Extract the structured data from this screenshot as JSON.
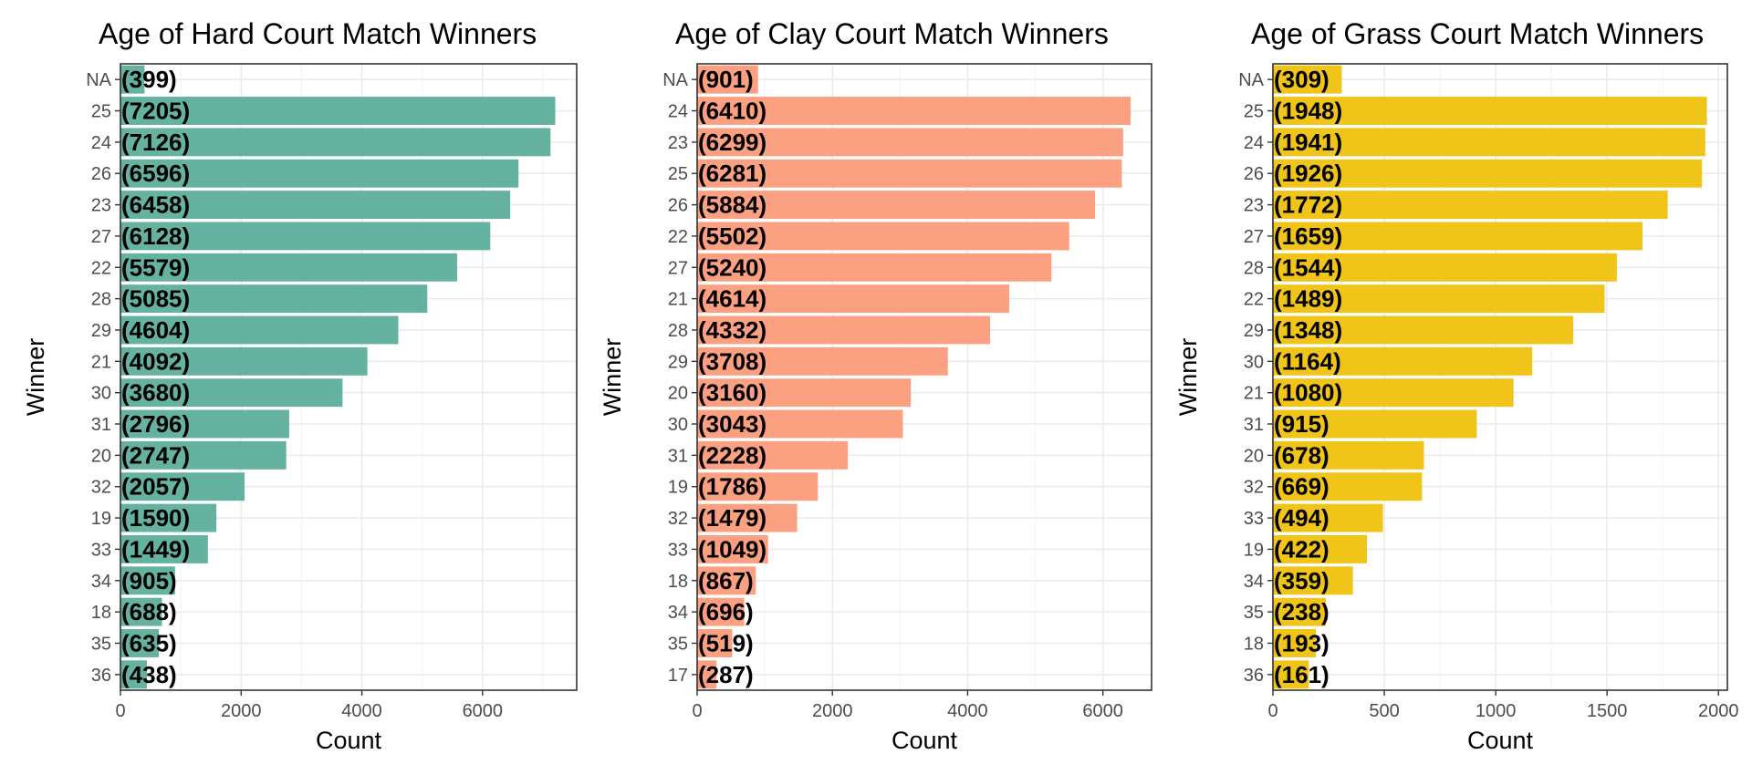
{
  "chart_data": [
    {
      "type": "bar",
      "orientation": "horizontal",
      "title": "Age of Hard Court Match Winners",
      "xlabel": "Count",
      "ylabel": "Winner",
      "color": "#66b2a0",
      "xlim": [
        0,
        7560
      ],
      "xticks": [
        0,
        2000,
        4000,
        6000
      ],
      "grid": true,
      "categories": [
        "NA",
        "25",
        "24",
        "26",
        "23",
        "27",
        "22",
        "28",
        "29",
        "21",
        "30",
        "31",
        "20",
        "32",
        "19",
        "33",
        "34",
        "18",
        "35",
        "36"
      ],
      "values": [
        399,
        7205,
        7126,
        6596,
        6458,
        6128,
        5579,
        5085,
        4604,
        4092,
        3680,
        2796,
        2747,
        2057,
        1590,
        1449,
        905,
        688,
        635,
        438
      ],
      "data_labels": [
        "(399)",
        "(7205)",
        "(7126)",
        "(6596)",
        "(6458)",
        "(6128)",
        "(5579)",
        "(5085)",
        "(4604)",
        "(4092)",
        "(3680)",
        "(2796)",
        "(2747)",
        "(2057)",
        "(1590)",
        "(1449)",
        "(905)",
        "(688)",
        "(635)",
        "(438)"
      ]
    },
    {
      "type": "bar",
      "orientation": "horizontal",
      "title": "Age of Clay Court Match Winners",
      "xlabel": "Count",
      "ylabel": "Winner",
      "color": "#fca082",
      "xlim": [
        0,
        6720
      ],
      "xticks": [
        0,
        2000,
        4000,
        6000
      ],
      "grid": true,
      "categories": [
        "NA",
        "24",
        "23",
        "25",
        "26",
        "22",
        "27",
        "21",
        "28",
        "29",
        "20",
        "30",
        "31",
        "19",
        "32",
        "33",
        "18",
        "34",
        "35",
        "17"
      ],
      "values": [
        901,
        6410,
        6299,
        6281,
        5884,
        5502,
        5240,
        4614,
        4332,
        3708,
        3160,
        3043,
        2228,
        1786,
        1479,
        1049,
        867,
        696,
        519,
        287
      ],
      "data_labels": [
        "(901)",
        "(6410)",
        "(6299)",
        "(6281)",
        "(5884)",
        "(5502)",
        "(5240)",
        "(4614)",
        "(4332)",
        "(3708)",
        "(3160)",
        "(3043)",
        "(2228)",
        "(1786)",
        "(1479)",
        "(1049)",
        "(867)",
        "(696)",
        "(519)",
        "(287)"
      ]
    },
    {
      "type": "bar",
      "orientation": "horizontal",
      "title": "Age of Grass Court Match Winners",
      "xlabel": "Count",
      "ylabel": "Winner",
      "color": "#f0c419",
      "xlim": [
        0,
        2040
      ],
      "xticks": [
        0,
        500,
        1000,
        1500,
        2000
      ],
      "grid": true,
      "categories": [
        "NA",
        "25",
        "24",
        "26",
        "23",
        "27",
        "28",
        "22",
        "29",
        "30",
        "21",
        "31",
        "20",
        "32",
        "33",
        "19",
        "34",
        "35",
        "18",
        "36"
      ],
      "values": [
        309,
        1948,
        1941,
        1926,
        1772,
        1659,
        1544,
        1489,
        1348,
        1164,
        1080,
        915,
        678,
        669,
        494,
        422,
        359,
        238,
        193,
        161
      ],
      "data_labels": [
        "(309)",
        "(1948)",
        "(1941)",
        "(1926)",
        "(1772)",
        "(1659)",
        "(1544)",
        "(1489)",
        "(1348)",
        "(1164)",
        "(1080)",
        "(915)",
        "(678)",
        "(669)",
        "(494)",
        "(422)",
        "(359)",
        "(238)",
        "(193)",
        "(161)"
      ]
    }
  ]
}
